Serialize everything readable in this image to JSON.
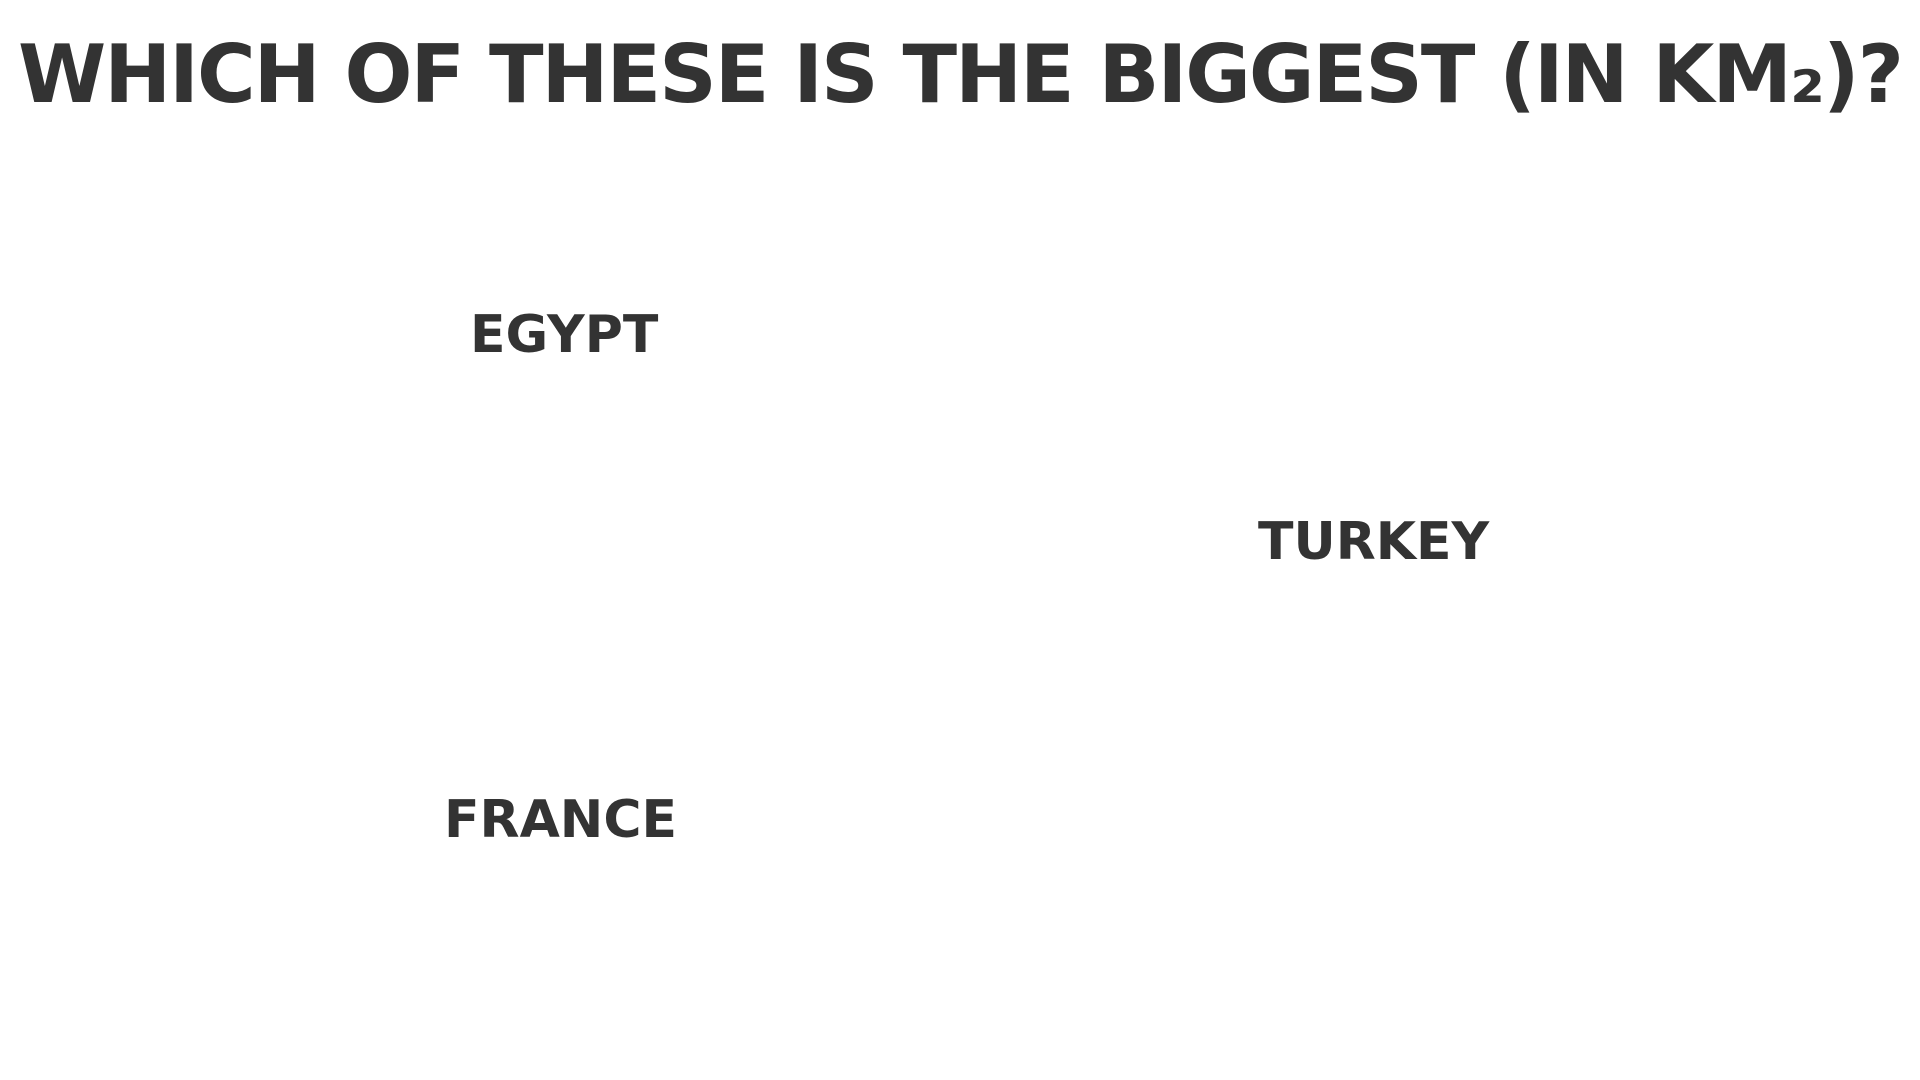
{
  "slide": {
    "title": "WHICH OF THESE IS THE BIGGEST (IN KM₂)?",
    "options": [
      {
        "label": "EGYPT"
      },
      {
        "label": "TURKEY"
      },
      {
        "label": "FRANCE"
      }
    ],
    "colors": {
      "background": "#ffffff",
      "text": "#333333"
    }
  }
}
